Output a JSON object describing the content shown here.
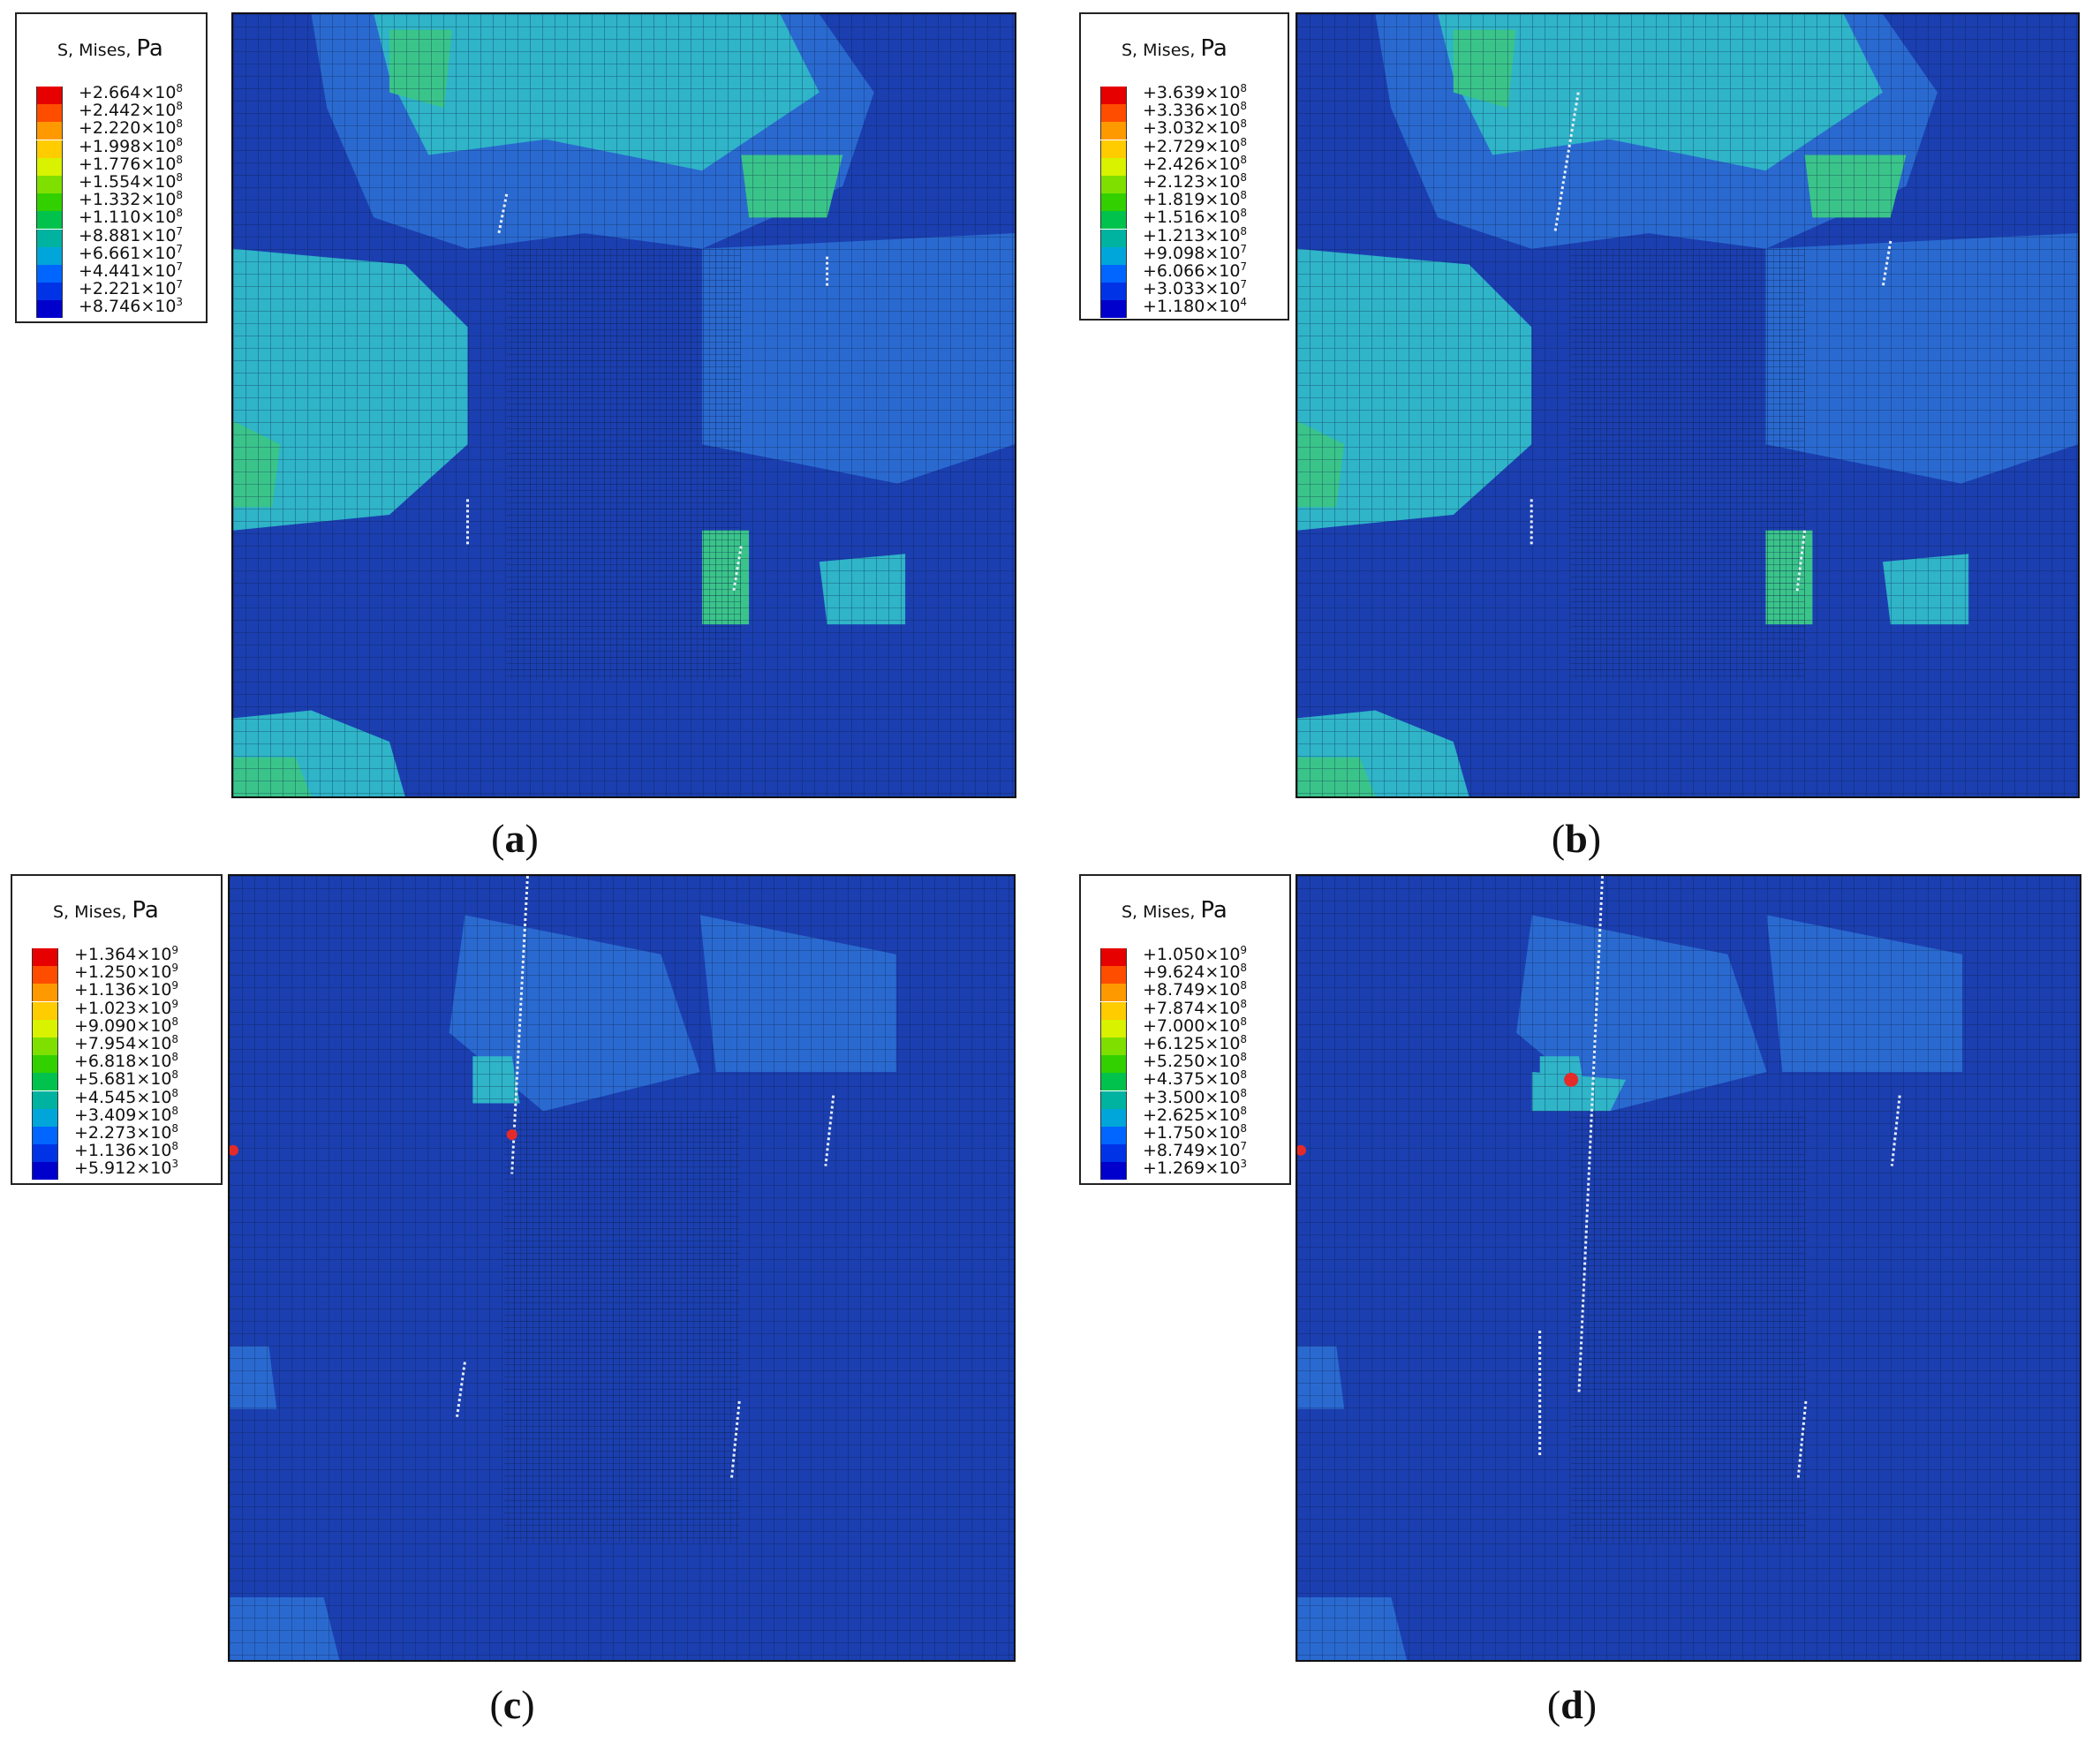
{
  "panels": [
    {
      "id": "a",
      "caption_letter": "a",
      "legend": {
        "title": "S, Mises",
        "unit": "Pa",
        "ticks": [
          "+2.664×10",
          "+2.442×10",
          "+2.220×10",
          "+1.998×10",
          "+1.776×10",
          "+1.554×10",
          "+1.332×10",
          "+1.110×10",
          "+8.881×10",
          "+6.661×10",
          "+4.441×10",
          "+2.221×10",
          "+8.746×10"
        ],
        "exponents": [
          "8",
          "8",
          "8",
          "8",
          "8",
          "8",
          "8",
          "8",
          "7",
          "7",
          "7",
          "7",
          "3"
        ]
      }
    },
    {
      "id": "b",
      "caption_letter": "b",
      "legend": {
        "title": "S, Mises",
        "unit": "Pa",
        "ticks": [
          "+3.639×10",
          "+3.336×10",
          "+3.032×10",
          "+2.729×10",
          "+2.426×10",
          "+2.123×10",
          "+1.819×10",
          "+1.516×10",
          "+1.213×10",
          "+9.098×10",
          "+6.066×10",
          "+3.033×10",
          "+1.180×10"
        ],
        "exponents": [
          "8",
          "8",
          "8",
          "8",
          "8",
          "8",
          "8",
          "8",
          "8",
          "7",
          "7",
          "7",
          "4"
        ]
      }
    },
    {
      "id": "c",
      "caption_letter": "c",
      "legend": {
        "title": "S, Mises",
        "unit": "Pa",
        "ticks": [
          "+1.364×10",
          "+1.250×10",
          "+1.136×10",
          "+1.023×10",
          "+9.090×10",
          "+7.954×10",
          "+6.818×10",
          "+5.681×10",
          "+4.545×10",
          "+3.409×10",
          "+2.273×10",
          "+1.136×10",
          "+5.912×10"
        ],
        "exponents": [
          "9",
          "9",
          "9",
          "9",
          "8",
          "8",
          "8",
          "8",
          "8",
          "8",
          "8",
          "8",
          "3"
        ]
      }
    },
    {
      "id": "d",
      "caption_letter": "d",
      "legend": {
        "title": "S, Mises",
        "unit": "Pa",
        "ticks": [
          "+1.050×10",
          "+9.624×10",
          "+8.749×10",
          "+7.874×10",
          "+7.000×10",
          "+6.125×10",
          "+5.250×10",
          "+4.375×10",
          "+3.500×10",
          "+2.625×10",
          "+1.750×10",
          "+8.749×10",
          "+1.269×10"
        ],
        "exponents": [
          "9",
          "8",
          "8",
          "8",
          "8",
          "8",
          "8",
          "8",
          "8",
          "8",
          "8",
          "7",
          "3"
        ]
      }
    }
  ],
  "colors": {
    "scale": [
      "#e60000",
      "#ff4d00",
      "#ff9900",
      "#ffcc00",
      "#d9f200",
      "#7fe000",
      "#33d000",
      "#00c24d",
      "#00b3a0",
      "#00a6d9",
      "#0066ff",
      "#0033e6",
      "#0000cc"
    ],
    "field_base": "#1b3fb0",
    "field_light": "#2a6ad0",
    "field_cyan": "#2fb4c8",
    "field_green": "#3ac48a",
    "mesh_line": "#0b1a40",
    "hotspot": "#e52a2a"
  }
}
